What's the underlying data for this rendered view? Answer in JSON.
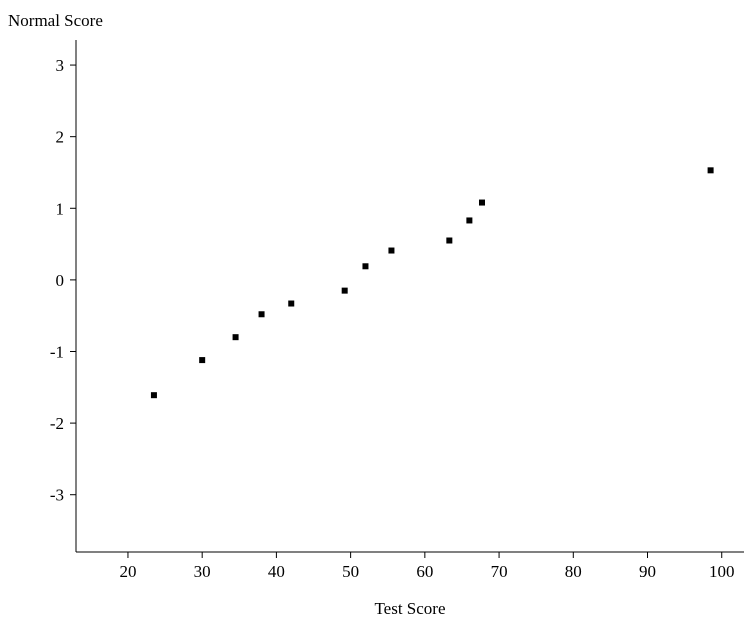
{
  "chart_data": {
    "type": "scatter",
    "xlabel": "Test Score",
    "ylabel": "Normal Score",
    "xlim": [
      13,
      103
    ],
    "ylim": [
      -3.8,
      3.35
    ],
    "x_ticks": [
      20,
      30,
      40,
      50,
      60,
      70,
      80,
      90,
      100
    ],
    "y_ticks": [
      3,
      2,
      1,
      0,
      -1,
      -2,
      -3
    ],
    "grid": false,
    "legend": "none",
    "marker_color": "#000000",
    "points": [
      {
        "x": 23.5,
        "y": -1.61
      },
      {
        "x": 30,
        "y": -1.12
      },
      {
        "x": 34.5,
        "y": -0.8
      },
      {
        "x": 38,
        "y": -0.48
      },
      {
        "x": 42,
        "y": -0.33
      },
      {
        "x": 49.2,
        "y": -0.15
      },
      {
        "x": 52,
        "y": 0.19
      },
      {
        "x": 55.5,
        "y": 0.41
      },
      {
        "x": 63.3,
        "y": 0.55
      },
      {
        "x": 66,
        "y": 0.83
      },
      {
        "x": 67.7,
        "y": 1.08
      },
      {
        "x": 98.5,
        "y": 1.53
      }
    ]
  }
}
